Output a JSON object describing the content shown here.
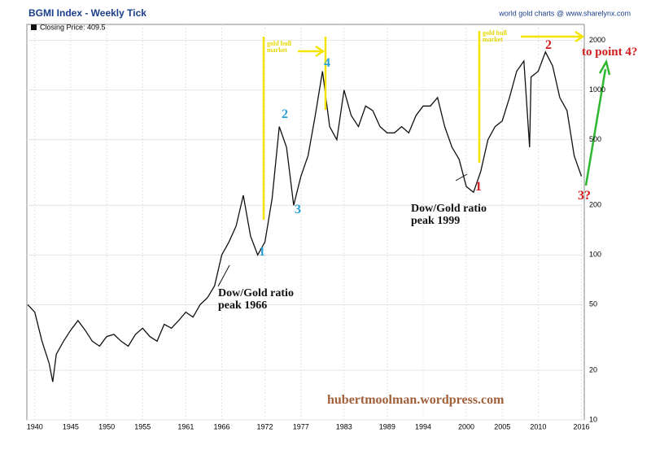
{
  "chart_data": {
    "type": "line",
    "title": "BGMI Index - Weekly Tick",
    "subtitle": "world gold charts @ www.sharelynx.com",
    "log_y": true,
    "grid": true,
    "y_axis_side": "right",
    "xlim": [
      1938.9,
      2016.4
    ],
    "xticks": [
      1940,
      1945,
      1950,
      1955,
      1961,
      1966,
      1972,
      1977,
      1983,
      1989,
      1994,
      2000,
      2005,
      2010,
      2016
    ],
    "ylim": [
      10,
      2500
    ],
    "yticks": [
      10,
      20,
      50,
      100,
      200,
      500,
      1000,
      2000
    ],
    "x": [
      1939,
      1940,
      1941,
      1942,
      1942.5,
      1943,
      1944,
      1945,
      1946,
      1947,
      1948,
      1949,
      1950,
      1951,
      1952,
      1953,
      1954,
      1955,
      1956,
      1957,
      1958,
      1959,
      1960,
      1961,
      1962,
      1963,
      1964,
      1965,
      1966,
      1967,
      1968,
      1969,
      1970,
      1971,
      1972,
      1973,
      1974,
      1975,
      1976,
      1977,
      1978,
      1979,
      1980,
      1981,
      1982,
      1983,
      1984,
      1985,
      1986,
      1987,
      1988,
      1989,
      1990,
      1991,
      1992,
      1993,
      1994,
      1995,
      1996,
      1997,
      1998,
      1999,
      2000,
      2001,
      2002,
      2003,
      2004,
      2005,
      2006,
      2007,
      2008,
      2008.8,
      2009,
      2010,
      2011,
      2012,
      2013,
      2014,
      2015,
      2016
    ],
    "series": [
      {
        "name": "Closing Price: 409.5",
        "color": "#111111",
        "values": [
          50,
          45,
          30,
          22,
          17,
          25,
          30,
          35,
          40,
          35,
          30,
          28,
          32,
          33,
          30,
          28,
          33,
          36,
          32,
          30,
          38,
          36,
          40,
          45,
          42,
          50,
          55,
          65,
          100,
          120,
          150,
          230,
          130,
          100,
          120,
          220,
          600,
          450,
          200,
          300,
          400,
          700,
          1300,
          600,
          500,
          1000,
          700,
          600,
          800,
          750,
          600,
          550,
          550,
          600,
          550,
          700,
          800,
          800,
          900,
          600,
          450,
          380,
          260,
          240,
          320,
          500,
          600,
          650,
          900,
          1300,
          1500,
          450,
          1200,
          1300,
          1700,
          1400,
          900,
          750,
          400,
          300
        ]
      }
    ],
    "annotations": [
      {
        "text": "gold bull market",
        "color": "#e6d800"
      },
      {
        "text": "gold bull market",
        "color": "#e6d800"
      },
      {
        "text": "1",
        "color": "#2a9fd6"
      },
      {
        "text": "2",
        "color": "#2a9fd6"
      },
      {
        "text": "3",
        "color": "#2a9fd6"
      },
      {
        "text": "4",
        "color": "#2a9fd6"
      },
      {
        "text": "1",
        "color": "#d01c1c"
      },
      {
        "text": "2",
        "color": "#d01c1c"
      },
      {
        "text": "3?",
        "color": "#d01c1c"
      },
      {
        "text": "to point 4?",
        "color": "#d01c1c"
      },
      {
        "text": "Dow/Gold ratio peak 1966",
        "color": "#111111"
      },
      {
        "text": "Dow/Gold ratio peak 1999",
        "color": "#111111"
      },
      {
        "text": "hubertmoolman.wordpress.com",
        "color": "#a0603a"
      }
    ]
  }
}
